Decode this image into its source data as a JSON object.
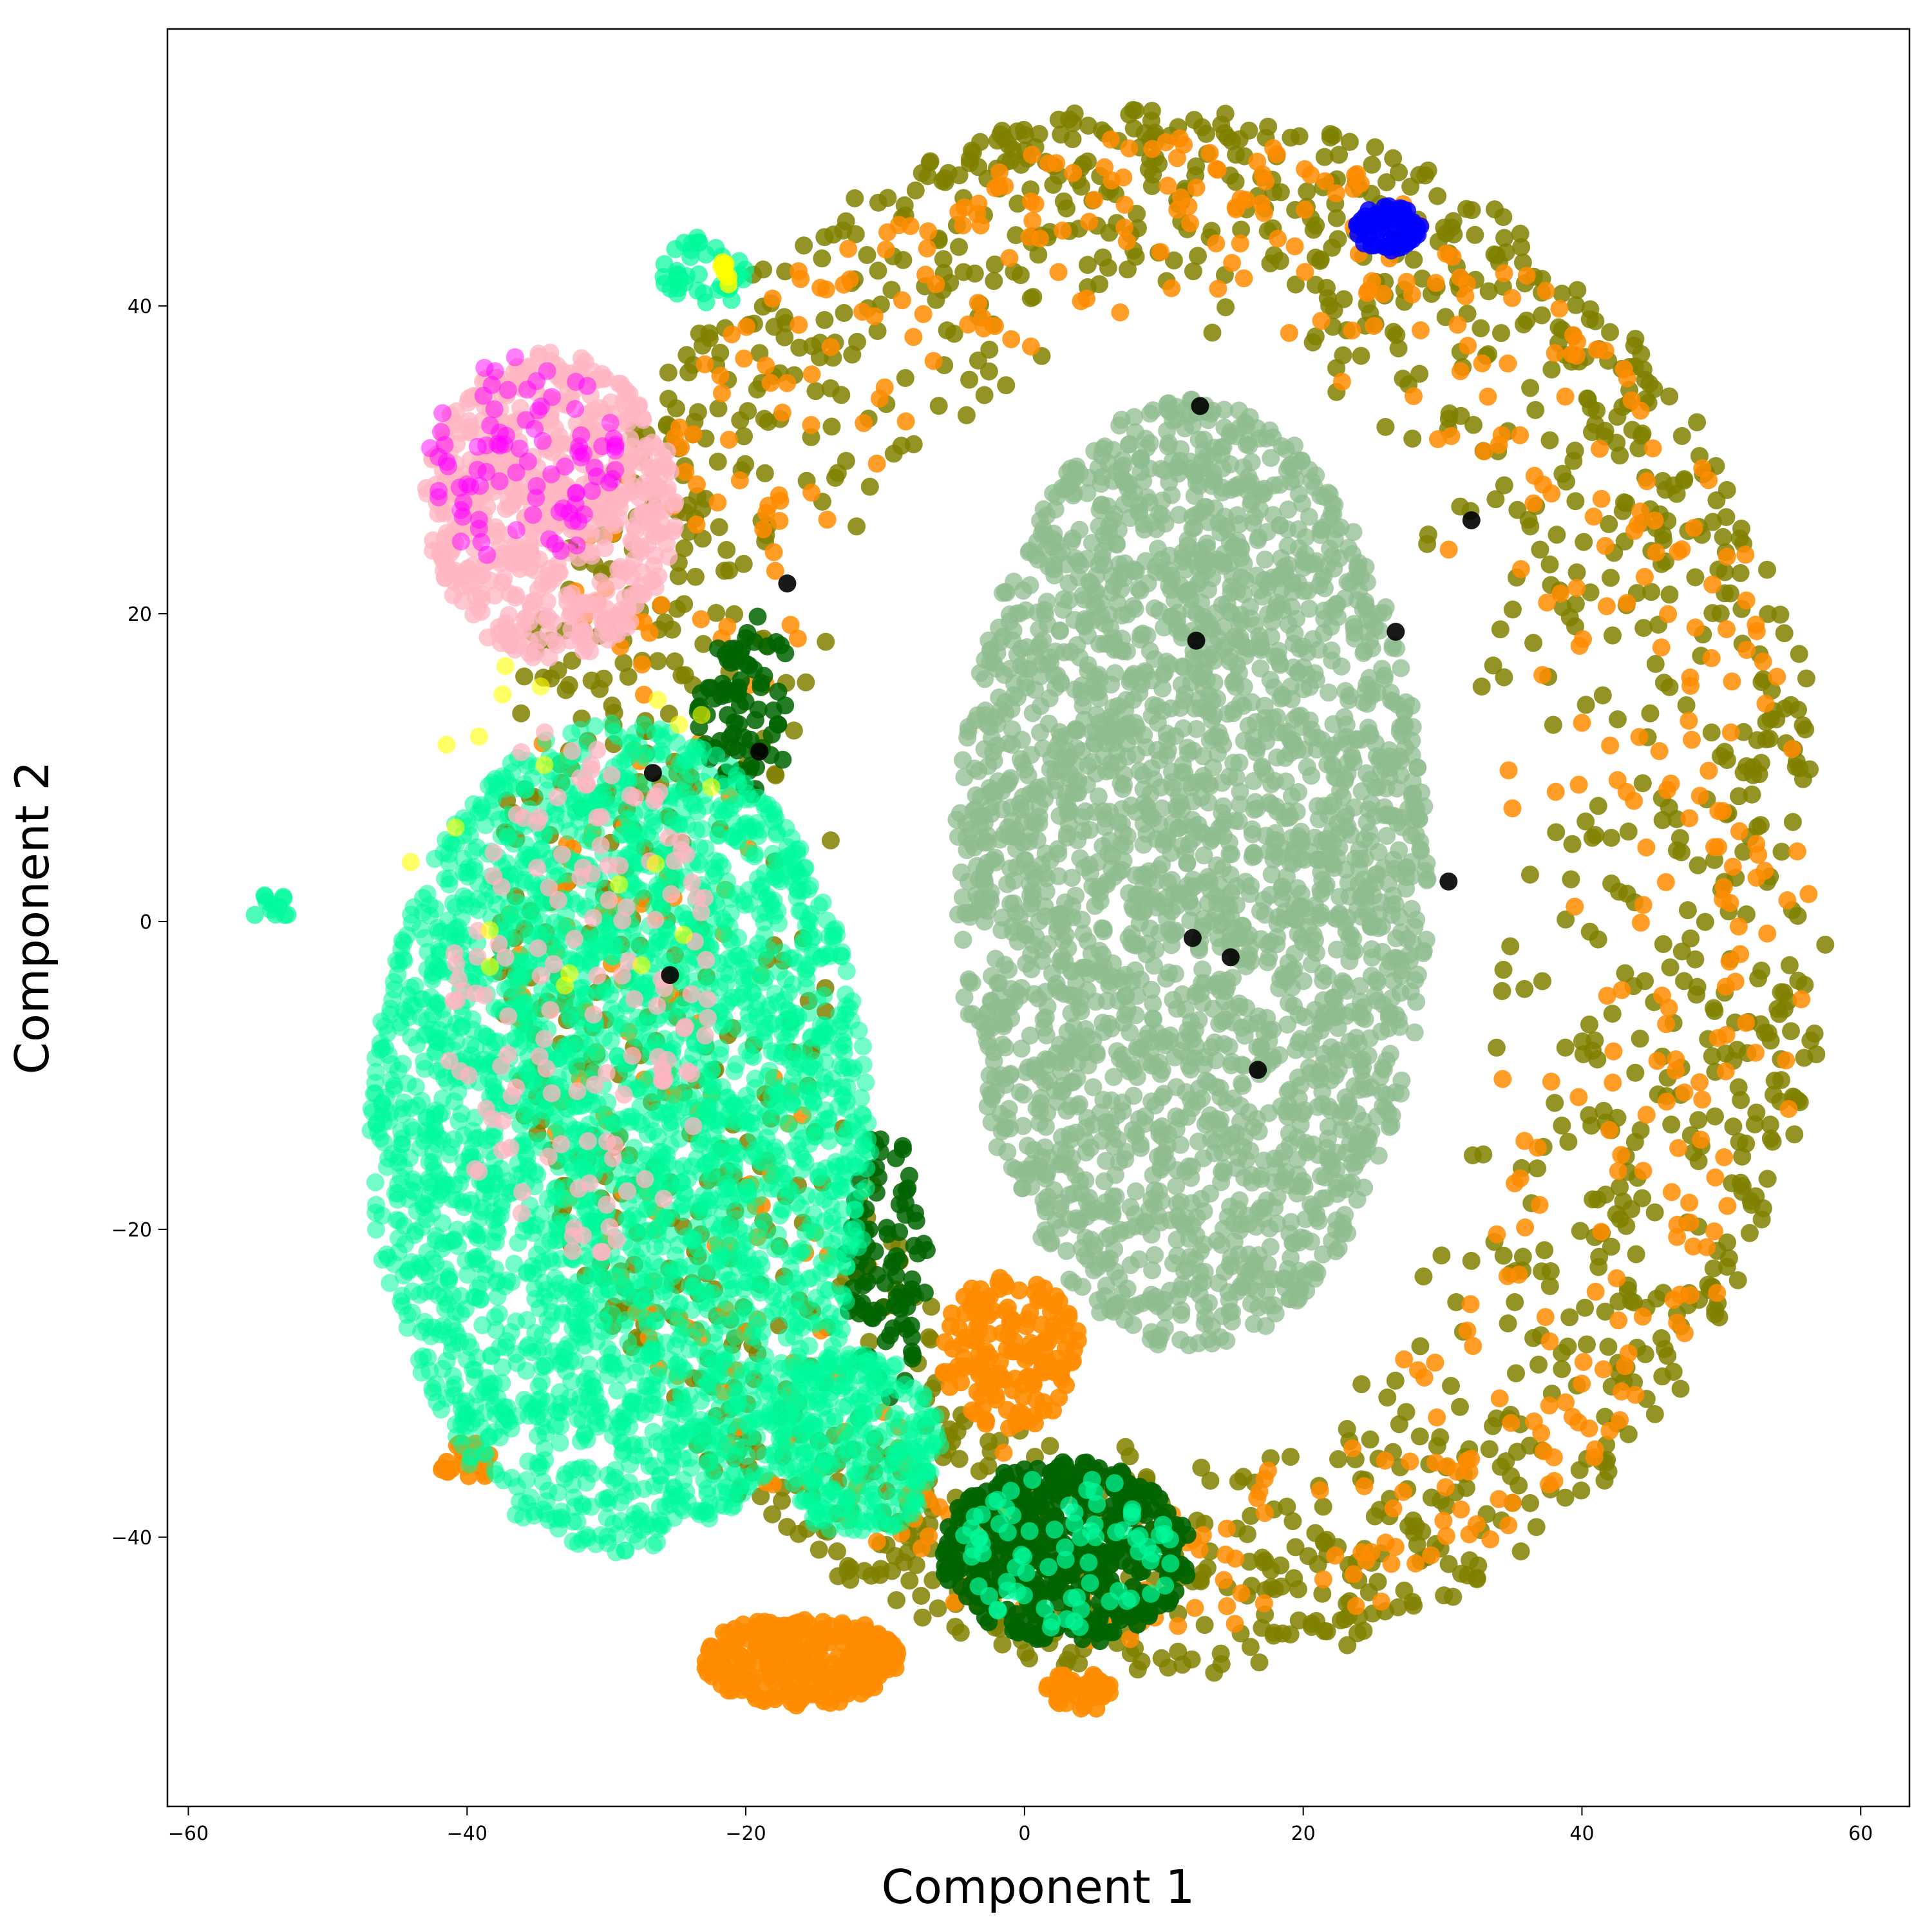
{
  "chart_data": {
    "type": "scatter",
    "xlabel": "Component 1",
    "ylabel": "Component 2",
    "xlim": [
      -61.5,
      63.5
    ],
    "ylim": [
      -57.5,
      58
    ],
    "xticks": [
      -60,
      -40,
      -20,
      0,
      20,
      40,
      60
    ],
    "yticks": [
      -40,
      -20,
      0,
      20,
      40
    ],
    "xtick_labels": [
      "−60",
      "−40",
      "−20",
      "0",
      "20",
      "40",
      "60"
    ],
    "ytick_labels": [
      "−40",
      "−20",
      "0",
      "20",
      "40"
    ],
    "grid": false,
    "legend": "none",
    "clusters": [
      {
        "color": "#808000",
        "alpha": 0.85,
        "shape": "ring",
        "center": [
          10,
          2
        ],
        "rx_inner": 23,
        "ry_inner": 36,
        "rx_outer": 48,
        "ry_outer": 51,
        "n": 1700
      },
      {
        "color": "#ff8c00",
        "alpha": 0.85,
        "shape": "ring",
        "center": [
          10,
          2
        ],
        "rx_inner": 24,
        "ry_inner": 37,
        "rx_outer": 47,
        "ry_outer": 49,
        "n": 650
      },
      {
        "color": "#ff8c00",
        "alpha": 0.9,
        "shape": "ellipse",
        "center": [
          -16,
          -48
        ],
        "rx": 7,
        "ry": 3,
        "n": 260
      },
      {
        "color": "#ff8c00",
        "alpha": 0.9,
        "shape": "ellipse",
        "center": [
          -1,
          -28
        ],
        "rx": 5,
        "ry": 5,
        "n": 160
      },
      {
        "color": "#ff8c00",
        "alpha": 0.9,
        "shape": "ellipse",
        "center": [
          4,
          -50
        ],
        "rx": 2.5,
        "ry": 1.3,
        "n": 40
      },
      {
        "color": "#ff8c00",
        "alpha": 0.9,
        "shape": "ellipse",
        "center": [
          -40,
          -35
        ],
        "rx": 2,
        "ry": 1.5,
        "n": 30
      },
      {
        "color": "#8fbc8f",
        "alpha": 0.75,
        "shape": "ellipse",
        "center": [
          12,
          3
        ],
        "rx": 17,
        "ry": 31,
        "n": 2600
      },
      {
        "color": "#006400",
        "alpha": 0.9,
        "shape": "ellipse",
        "center": [
          3,
          -41
        ],
        "rx": 9,
        "ry": 6,
        "n": 450
      },
      {
        "color": "#006400",
        "alpha": 0.85,
        "shape": "ellipse",
        "center": [
          -20,
          14
        ],
        "rx": 3.5,
        "ry": 6,
        "n": 80
      },
      {
        "color": "#006400",
        "alpha": 0.85,
        "shape": "ellipse",
        "center": [
          -10,
          -22
        ],
        "rx": 3,
        "ry": 9,
        "n": 90
      },
      {
        "color": "#00fa9a",
        "alpha": 0.55,
        "shape": "ellipse",
        "center": [
          -29,
          -14
        ],
        "rx": 18,
        "ry": 27,
        "n": 2800
      },
      {
        "color": "#00fa9a",
        "alpha": 0.55,
        "shape": "ellipse",
        "center": [
          -12,
          -34
        ],
        "rx": 6,
        "ry": 6,
        "n": 300
      },
      {
        "color": "#00fa9a",
        "alpha": 0.7,
        "shape": "ellipse",
        "center": [
          3,
          -41
        ],
        "rx": 8,
        "ry": 5,
        "n": 80
      },
      {
        "color": "#00fa9a",
        "alpha": 0.7,
        "shape": "ellipse",
        "center": [
          -23,
          42
        ],
        "rx": 3,
        "ry": 2.5,
        "n": 40
      },
      {
        "color": "#00fa9a",
        "alpha": 0.7,
        "shape": "ellipse",
        "center": [
          -54,
          1
        ],
        "rx": 1.5,
        "ry": 1,
        "n": 12
      },
      {
        "color": "#ffb6c1",
        "alpha": 0.75,
        "shape": "ellipse",
        "center": [
          -34,
          27
        ],
        "rx": 9,
        "ry": 10,
        "n": 600
      },
      {
        "color": "#ff00ff",
        "alpha": 0.5,
        "shape": "ellipse",
        "center": [
          -36,
          30
        ],
        "rx": 7,
        "ry": 7,
        "n": 90
      },
      {
        "color": "#ffb6c1",
        "alpha": 0.75,
        "shape": "ellipse",
        "center": [
          -32,
          -5
        ],
        "rx": 10,
        "ry": 18,
        "n": 140
      },
      {
        "color": "#0000ff",
        "alpha": 0.85,
        "shape": "ellipse",
        "center": [
          26,
          45
        ],
        "rx": 2.5,
        "ry": 1.5,
        "n": 70
      },
      {
        "color": "#ffff00",
        "alpha": 0.6,
        "shape": "ellipse",
        "center": [
          -33,
          5
        ],
        "rx": 12,
        "ry": 15,
        "n": 20
      },
      {
        "color": "#ffff00",
        "alpha": 0.8,
        "shape": "ellipse",
        "center": [
          -22,
          42
        ],
        "rx": 1.2,
        "ry": 1.2,
        "n": 8
      },
      {
        "color": "#000000",
        "alpha": 0.9,
        "shape": "ellipse",
        "center": [
          12,
          0
        ],
        "rx": 40,
        "ry": 40,
        "n": 12
      }
    ]
  }
}
